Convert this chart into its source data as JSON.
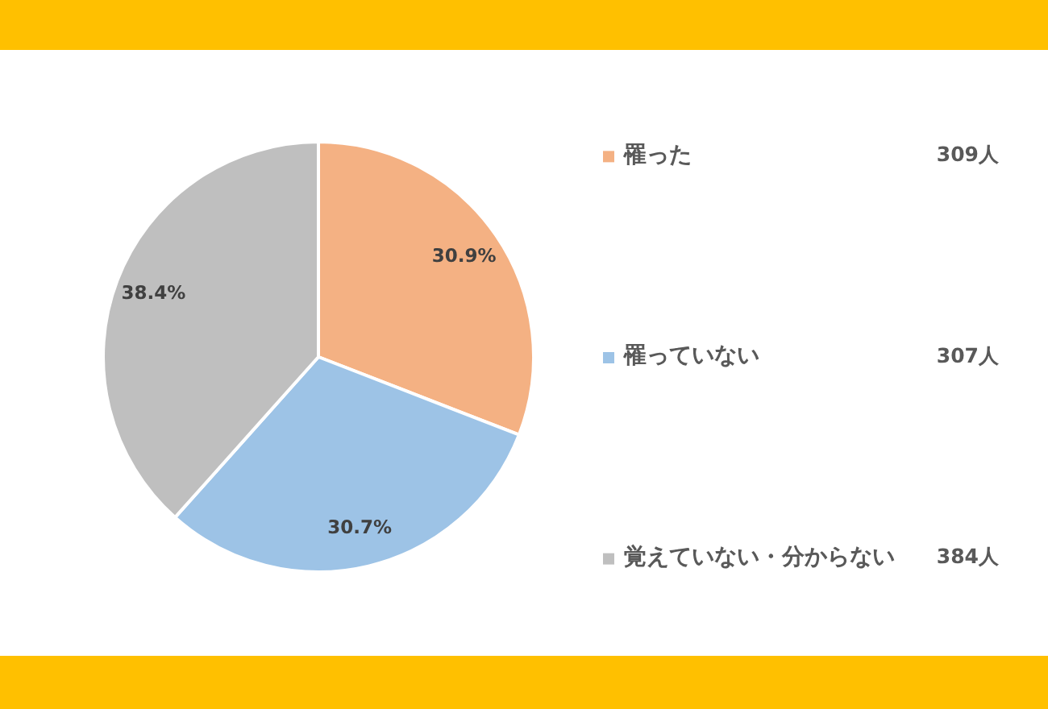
{
  "chart_data": {
    "type": "pie",
    "categories": [
      "罹った",
      "罹っていない",
      "覚えていない・分からない"
    ],
    "values": [
      30.9,
      30.7,
      38.4
    ],
    "colors": [
      "#f4b183",
      "#9dc3e6",
      "#bfbfbf"
    ],
    "value_labels": [
      "30.9%",
      "30.7%",
      "38.4%"
    ],
    "annotations": [
      "309人",
      "307人",
      "384人"
    ],
    "legend": "right"
  }
}
